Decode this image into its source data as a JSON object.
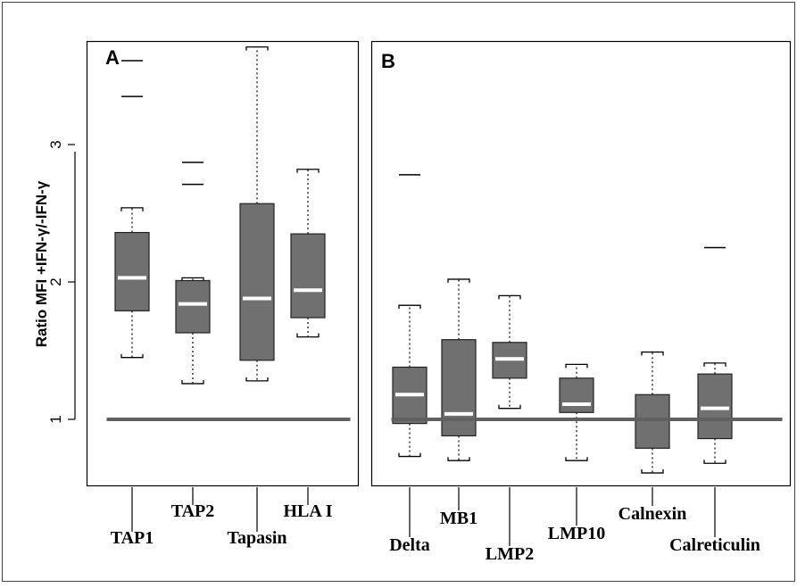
{
  "chart_data": [
    {
      "type": "box",
      "panel_label": "A",
      "ylabel": "Ratio MFI +IFN-γ/-IFN-γ",
      "yticks": [
        1,
        2,
        3
      ],
      "ylim": [
        0.45,
        3.85
      ],
      "reference_line": 1.0,
      "colors": {
        "box_fill": "#707070",
        "median": "#ffffff",
        "reference_line": "#606060"
      },
      "boxes": [
        {
          "name": "TAP1",
          "lower_whisker": 1.45,
          "q1": 1.79,
          "median": 2.03,
          "q3": 2.36,
          "upper_whisker": 2.54,
          "outliers": [
            3.35,
            3.61
          ]
        },
        {
          "name": "TAP2",
          "lower_whisker": 1.26,
          "q1": 1.63,
          "median": 1.84,
          "q3": 2.01,
          "upper_whisker": 2.03,
          "outliers": [
            2.71,
            2.87
          ]
        },
        {
          "name": "Tapasin",
          "lower_whisker": 1.28,
          "q1": 1.43,
          "median": 1.88,
          "q3": 2.57,
          "upper_whisker": 3.71,
          "outliers": []
        },
        {
          "name": "HLA I",
          "lower_whisker": 1.6,
          "q1": 1.74,
          "median": 1.94,
          "q3": 2.35,
          "upper_whisker": 2.82,
          "outliers": []
        }
      ]
    },
    {
      "type": "box",
      "panel_label": "B",
      "ylim": [
        0.45,
        3.85
      ],
      "reference_line": 1.0,
      "colors": {
        "box_fill": "#707070",
        "median": "#ffffff",
        "reference_line": "#606060"
      },
      "boxes": [
        {
          "name": "Delta",
          "lower_whisker": 0.73,
          "q1": 0.97,
          "median": 1.18,
          "q3": 1.38,
          "upper_whisker": 1.83,
          "outliers": [
            2.78
          ]
        },
        {
          "name": "MB1",
          "lower_whisker": 0.7,
          "q1": 0.88,
          "median": 1.04,
          "q3": 1.58,
          "upper_whisker": 2.02,
          "outliers": []
        },
        {
          "name": "LMP2",
          "lower_whisker": 1.08,
          "q1": 1.3,
          "median": 1.44,
          "q3": 1.56,
          "upper_whisker": 1.9,
          "outliers": []
        },
        {
          "name": "LMP10",
          "lower_whisker": 0.7,
          "q1": 1.05,
          "median": 1.11,
          "q3": 1.3,
          "upper_whisker": 1.4,
          "outliers": []
        },
        {
          "name": "Calnexin",
          "lower_whisker": 0.61,
          "q1": 0.79,
          "median": 1.0,
          "q3": 1.18,
          "upper_whisker": 1.49,
          "outliers": []
        },
        {
          "name": "Calreticulin",
          "lower_whisker": 0.68,
          "q1": 0.86,
          "median": 1.08,
          "q3": 1.33,
          "upper_whisker": 1.41,
          "outliers": [
            2.25
          ]
        }
      ]
    }
  ]
}
